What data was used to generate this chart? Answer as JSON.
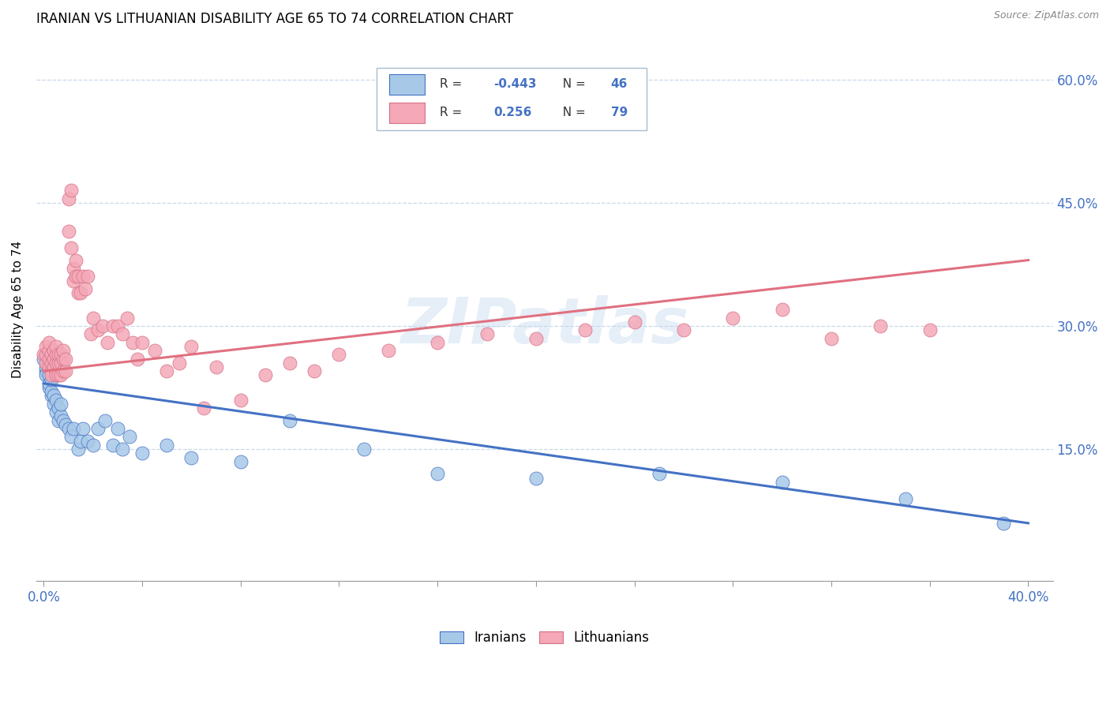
{
  "title": "IRANIAN VS LITHUANIAN DISABILITY AGE 65 TO 74 CORRELATION CHART",
  "source": "Source: ZipAtlas.com",
  "ylabel": "Disability Age 65 to 74",
  "iranians_color": "#a8c8e8",
  "lithuanians_color": "#f4a8b8",
  "iranian_line_color": "#4472c4",
  "lithuanian_line_color": "#e07080",
  "R_iranian": -0.443,
  "N_iranian": 46,
  "R_lithuanian": 0.256,
  "N_lithuanian": 79,
  "watermark": "ZIPatlas",
  "iranians_x": [
    0.0,
    0.001,
    0.001,
    0.001,
    0.002,
    0.002,
    0.002,
    0.003,
    0.003,
    0.003,
    0.004,
    0.004,
    0.005,
    0.005,
    0.006,
    0.006,
    0.007,
    0.007,
    0.008,
    0.009,
    0.01,
    0.011,
    0.012,
    0.014,
    0.015,
    0.016,
    0.018,
    0.02,
    0.022,
    0.025,
    0.028,
    0.03,
    0.032,
    0.035,
    0.04,
    0.05,
    0.06,
    0.08,
    0.1,
    0.13,
    0.16,
    0.2,
    0.25,
    0.3,
    0.35,
    0.39
  ],
  "iranians_y": [
    0.26,
    0.245,
    0.25,
    0.24,
    0.225,
    0.23,
    0.24,
    0.215,
    0.22,
    0.235,
    0.205,
    0.215,
    0.195,
    0.21,
    0.185,
    0.2,
    0.19,
    0.205,
    0.185,
    0.18,
    0.175,
    0.165,
    0.175,
    0.15,
    0.16,
    0.175,
    0.16,
    0.155,
    0.175,
    0.185,
    0.155,
    0.175,
    0.15,
    0.165,
    0.145,
    0.155,
    0.14,
    0.135,
    0.185,
    0.15,
    0.12,
    0.115,
    0.12,
    0.11,
    0.09,
    0.06
  ],
  "lithuanians_x": [
    0.0,
    0.001,
    0.001,
    0.001,
    0.002,
    0.002,
    0.002,
    0.002,
    0.003,
    0.003,
    0.003,
    0.003,
    0.004,
    0.004,
    0.004,
    0.005,
    0.005,
    0.005,
    0.005,
    0.006,
    0.006,
    0.006,
    0.007,
    0.007,
    0.007,
    0.008,
    0.008,
    0.008,
    0.009,
    0.009,
    0.01,
    0.01,
    0.011,
    0.011,
    0.012,
    0.012,
    0.013,
    0.013,
    0.014,
    0.014,
    0.015,
    0.016,
    0.017,
    0.018,
    0.019,
    0.02,
    0.022,
    0.024,
    0.026,
    0.028,
    0.03,
    0.032,
    0.034,
    0.036,
    0.038,
    0.04,
    0.045,
    0.05,
    0.055,
    0.06,
    0.065,
    0.07,
    0.08,
    0.09,
    0.1,
    0.11,
    0.12,
    0.14,
    0.16,
    0.18,
    0.2,
    0.22,
    0.24,
    0.26,
    0.28,
    0.3,
    0.32,
    0.34,
    0.36
  ],
  "lithuanians_y": [
    0.265,
    0.255,
    0.265,
    0.275,
    0.25,
    0.26,
    0.27,
    0.28,
    0.245,
    0.255,
    0.265,
    0.24,
    0.25,
    0.26,
    0.27,
    0.24,
    0.255,
    0.265,
    0.275,
    0.24,
    0.255,
    0.265,
    0.24,
    0.255,
    0.265,
    0.245,
    0.26,
    0.27,
    0.245,
    0.26,
    0.455,
    0.415,
    0.465,
    0.395,
    0.37,
    0.355,
    0.36,
    0.38,
    0.34,
    0.36,
    0.34,
    0.36,
    0.345,
    0.36,
    0.29,
    0.31,
    0.295,
    0.3,
    0.28,
    0.3,
    0.3,
    0.29,
    0.31,
    0.28,
    0.26,
    0.28,
    0.27,
    0.245,
    0.255,
    0.275,
    0.2,
    0.25,
    0.21,
    0.24,
    0.255,
    0.245,
    0.265,
    0.27,
    0.28,
    0.29,
    0.285,
    0.295,
    0.305,
    0.295,
    0.31,
    0.32,
    0.285,
    0.3,
    0.295
  ],
  "iranian_line_x0": 0.0,
  "iranian_line_y0": 0.23,
  "iranian_line_x1": 0.4,
  "iranian_line_y1": 0.06,
  "lith_line_x0": 0.0,
  "lith_line_y0": 0.245,
  "lith_line_x1": 0.4,
  "lith_line_y1": 0.38,
  "xlim": [
    -0.003,
    0.41
  ],
  "ylim": [
    -0.01,
    0.65
  ],
  "x_ticks": [
    0.0,
    0.04,
    0.08,
    0.12,
    0.16,
    0.2,
    0.24,
    0.28,
    0.32,
    0.36,
    0.4
  ],
  "y_ticks": [
    0.15,
    0.3,
    0.45,
    0.6
  ],
  "y_tick_labels": [
    "15.0%",
    "30.0%",
    "45.0%",
    "60.0%"
  ]
}
